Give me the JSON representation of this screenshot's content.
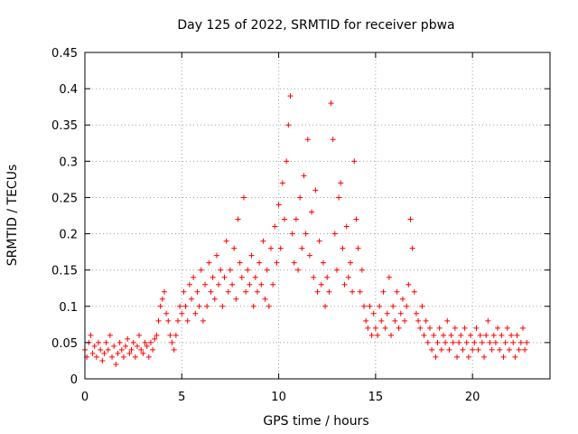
{
  "chart_data": {
    "type": "scatter",
    "title": "Day 125 of 2022, SRMTID for receiver pbwa",
    "xlabel": "GPS time / hours",
    "ylabel": "SRMTID / TECUs",
    "xlim": [
      0,
      24
    ],
    "ylim": [
      0,
      0.45
    ],
    "xticks": [
      0,
      5,
      10,
      15,
      20
    ],
    "xtick_labels": [
      "0",
      "5",
      "10",
      "15",
      "20"
    ],
    "yticks": [
      0,
      0.05,
      0.1,
      0.15,
      0.2,
      0.25,
      0.3,
      0.35,
      0.4,
      0.45
    ],
    "ytick_labels": [
      "0",
      "0.05",
      "0.1",
      "0.15",
      "0.2",
      "0.25",
      "0.3",
      "0.35",
      "0.4",
      "0.45"
    ],
    "grid": true,
    "marker": "plus",
    "color": "#ff0000",
    "series": [
      {
        "name": "SRMTID",
        "points": [
          [
            0.0,
            0.04
          ],
          [
            0.1,
            0.03
          ],
          [
            0.2,
            0.05
          ],
          [
            0.3,
            0.06
          ],
          [
            0.4,
            0.035
          ],
          [
            0.5,
            0.045
          ],
          [
            0.6,
            0.03
          ],
          [
            0.7,
            0.05
          ],
          [
            0.8,
            0.04
          ],
          [
            0.9,
            0.025
          ],
          [
            1.0,
            0.035
          ],
          [
            1.1,
            0.05
          ],
          [
            1.2,
            0.04
          ],
          [
            1.3,
            0.06
          ],
          [
            1.4,
            0.03
          ],
          [
            1.5,
            0.045
          ],
          [
            1.6,
            0.02
          ],
          [
            1.7,
            0.035
          ],
          [
            1.8,
            0.05
          ],
          [
            1.9,
            0.04
          ],
          [
            2.0,
            0.03
          ],
          [
            2.1,
            0.045
          ],
          [
            2.2,
            0.055
          ],
          [
            2.3,
            0.035
          ],
          [
            2.4,
            0.04
          ],
          [
            2.5,
            0.05
          ],
          [
            2.6,
            0.03
          ],
          [
            2.7,
            0.045
          ],
          [
            2.8,
            0.06
          ],
          [
            2.9,
            0.04
          ],
          [
            3.0,
            0.035
          ],
          [
            3.1,
            0.05
          ],
          [
            3.2,
            0.045
          ],
          [
            3.3,
            0.03
          ],
          [
            3.4,
            0.05
          ],
          [
            3.5,
            0.04
          ],
          [
            3.6,
            0.055
          ],
          [
            3.7,
            0.06
          ],
          [
            3.8,
            0.08
          ],
          [
            3.9,
            0.1
          ],
          [
            4.0,
            0.11
          ],
          [
            4.1,
            0.12
          ],
          [
            4.2,
            0.09
          ],
          [
            4.3,
            0.08
          ],
          [
            4.4,
            0.06
          ],
          [
            4.5,
            0.05
          ],
          [
            4.6,
            0.04
          ],
          [
            4.7,
            0.06
          ],
          [
            4.8,
            0.08
          ],
          [
            4.9,
            0.1
          ],
          [
            5.0,
            0.09
          ],
          [
            5.1,
            0.12
          ],
          [
            5.2,
            0.1
          ],
          [
            5.3,
            0.08
          ],
          [
            5.4,
            0.13
          ],
          [
            5.5,
            0.11
          ],
          [
            5.6,
            0.14
          ],
          [
            5.7,
            0.09
          ],
          [
            5.8,
            0.12
          ],
          [
            5.9,
            0.1
          ],
          [
            6.0,
            0.15
          ],
          [
            6.1,
            0.08
          ],
          [
            6.2,
            0.13
          ],
          [
            6.3,
            0.1
          ],
          [
            6.4,
            0.16
          ],
          [
            6.5,
            0.12
          ],
          [
            6.6,
            0.14
          ],
          [
            6.7,
            0.11
          ],
          [
            6.8,
            0.17
          ],
          [
            6.9,
            0.13
          ],
          [
            7.0,
            0.15
          ],
          [
            7.1,
            0.1
          ],
          [
            7.2,
            0.14
          ],
          [
            7.3,
            0.19
          ],
          [
            7.4,
            0.12
          ],
          [
            7.5,
            0.15
          ],
          [
            7.6,
            0.13
          ],
          [
            7.7,
            0.18
          ],
          [
            7.8,
            0.11
          ],
          [
            7.9,
            0.22
          ],
          [
            8.0,
            0.16
          ],
          [
            8.1,
            0.14
          ],
          [
            8.2,
            0.25
          ],
          [
            8.3,
            0.12
          ],
          [
            8.4,
            0.15
          ],
          [
            8.5,
            0.13
          ],
          [
            8.6,
            0.17
          ],
          [
            8.7,
            0.1
          ],
          [
            8.8,
            0.14
          ],
          [
            8.9,
            0.12
          ],
          [
            9.0,
            0.16
          ],
          [
            9.1,
            0.13
          ],
          [
            9.2,
            0.19
          ],
          [
            9.3,
            0.11
          ],
          [
            9.4,
            0.15
          ],
          [
            9.5,
            0.1
          ],
          [
            9.6,
            0.18
          ],
          [
            9.7,
            0.13
          ],
          [
            9.8,
            0.21
          ],
          [
            9.9,
            0.16
          ],
          [
            10.0,
            0.24
          ],
          [
            10.1,
            0.18
          ],
          [
            10.2,
            0.27
          ],
          [
            10.3,
            0.22
          ],
          [
            10.4,
            0.3
          ],
          [
            10.5,
            0.35
          ],
          [
            10.6,
            0.39
          ],
          [
            10.7,
            0.2
          ],
          [
            10.8,
            0.16
          ],
          [
            10.9,
            0.22
          ],
          [
            11.0,
            0.15
          ],
          [
            11.1,
            0.25
          ],
          [
            11.2,
            0.18
          ],
          [
            11.3,
            0.28
          ],
          [
            11.4,
            0.2
          ],
          [
            11.5,
            0.33
          ],
          [
            11.6,
            0.17
          ],
          [
            11.7,
            0.23
          ],
          [
            11.8,
            0.14
          ],
          [
            11.9,
            0.26
          ],
          [
            12.0,
            0.12
          ],
          [
            12.1,
            0.19
          ],
          [
            12.2,
            0.13
          ],
          [
            12.3,
            0.16
          ],
          [
            12.4,
            0.1
          ],
          [
            12.5,
            0.14
          ],
          [
            12.6,
            0.12
          ],
          [
            12.7,
            0.38
          ],
          [
            12.8,
            0.33
          ],
          [
            12.9,
            0.2
          ],
          [
            13.0,
            0.15
          ],
          [
            13.1,
            0.25
          ],
          [
            13.2,
            0.27
          ],
          [
            13.3,
            0.18
          ],
          [
            13.4,
            0.13
          ],
          [
            13.5,
            0.21
          ],
          [
            13.6,
            0.14
          ],
          [
            13.7,
            0.16
          ],
          [
            13.8,
            0.12
          ],
          [
            13.9,
            0.3
          ],
          [
            14.0,
            0.22
          ],
          [
            14.1,
            0.18
          ],
          [
            14.2,
            0.12
          ],
          [
            14.3,
            0.15
          ],
          [
            14.4,
            0.1
          ],
          [
            14.5,
            0.08
          ],
          [
            14.6,
            0.07
          ],
          [
            14.7,
            0.1
          ],
          [
            14.8,
            0.06
          ],
          [
            14.9,
            0.09
          ],
          [
            15.0,
            0.07
          ],
          [
            15.1,
            0.06
          ],
          [
            15.2,
            0.1
          ],
          [
            15.3,
            0.08
          ],
          [
            15.4,
            0.12
          ],
          [
            15.5,
            0.07
          ],
          [
            15.6,
            0.09
          ],
          [
            15.7,
            0.14
          ],
          [
            15.8,
            0.06
          ],
          [
            15.9,
            0.1
          ],
          [
            16.0,
            0.08
          ],
          [
            16.1,
            0.12
          ],
          [
            16.2,
            0.07
          ],
          [
            16.3,
            0.09
          ],
          [
            16.4,
            0.11
          ],
          [
            16.5,
            0.08
          ],
          [
            16.6,
            0.1
          ],
          [
            16.7,
            0.13
          ],
          [
            16.8,
            0.22
          ],
          [
            16.9,
            0.18
          ],
          [
            17.0,
            0.12
          ],
          [
            17.1,
            0.09
          ],
          [
            17.2,
            0.08
          ],
          [
            17.3,
            0.07
          ],
          [
            17.4,
            0.1
          ],
          [
            17.5,
            0.06
          ],
          [
            17.6,
            0.08
          ],
          [
            17.7,
            0.05
          ],
          [
            17.8,
            0.07
          ],
          [
            17.9,
            0.04
          ],
          [
            18.0,
            0.06
          ],
          [
            18.1,
            0.03
          ],
          [
            18.2,
            0.05
          ],
          [
            18.3,
            0.07
          ],
          [
            18.4,
            0.04
          ],
          [
            18.5,
            0.06
          ],
          [
            18.6,
            0.05
          ],
          [
            18.7,
            0.08
          ],
          [
            18.8,
            0.04
          ],
          [
            18.9,
            0.06
          ],
          [
            19.0,
            0.05
          ],
          [
            19.1,
            0.07
          ],
          [
            19.2,
            0.03
          ],
          [
            19.3,
            0.05
          ],
          [
            19.4,
            0.06
          ],
          [
            19.5,
            0.04
          ],
          [
            19.6,
            0.07
          ],
          [
            19.7,
            0.05
          ],
          [
            19.8,
            0.03
          ],
          [
            19.9,
            0.06
          ],
          [
            20.0,
            0.04
          ],
          [
            20.1,
            0.05
          ],
          [
            20.2,
            0.07
          ],
          [
            20.3,
            0.04
          ],
          [
            20.4,
            0.06
          ],
          [
            20.5,
            0.05
          ],
          [
            20.6,
            0.03
          ],
          [
            20.7,
            0.06
          ],
          [
            20.8,
            0.08
          ],
          [
            20.9,
            0.05
          ],
          [
            21.0,
            0.04
          ],
          [
            21.1,
            0.06
          ],
          [
            21.2,
            0.05
          ],
          [
            21.3,
            0.07
          ],
          [
            21.4,
            0.04
          ],
          [
            21.5,
            0.06
          ],
          [
            21.6,
            0.03
          ],
          [
            21.7,
            0.05
          ],
          [
            21.8,
            0.07
          ],
          [
            21.9,
            0.04
          ],
          [
            22.0,
            0.06
          ],
          [
            22.1,
            0.05
          ],
          [
            22.2,
            0.03
          ],
          [
            22.3,
            0.06
          ],
          [
            22.4,
            0.04
          ],
          [
            22.5,
            0.05
          ],
          [
            22.6,
            0.07
          ],
          [
            22.7,
            0.04
          ],
          [
            22.8,
            0.05
          ]
        ]
      }
    ]
  }
}
